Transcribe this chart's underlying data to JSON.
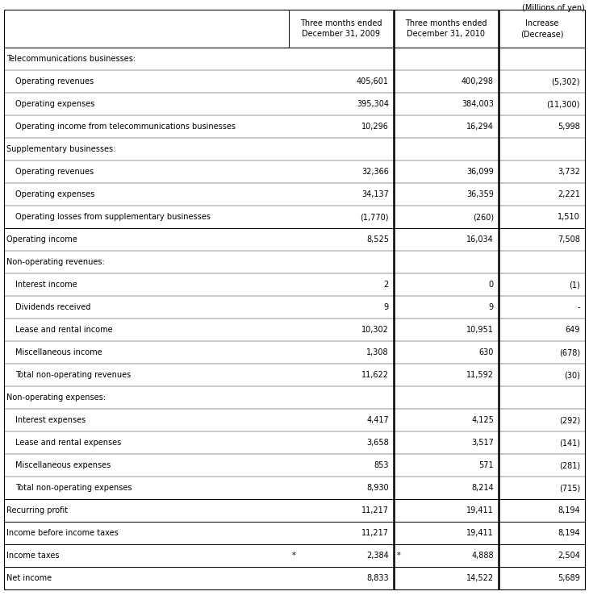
{
  "title_note": "(Millions of yen)",
  "col_headers": [
    "Three months ended\nDecember 31, 2009",
    "Three months ended\nDecember 31, 2010",
    "Increase\n(Decrease)"
  ],
  "rows": [
    {
      "label": "Telecommunications businesses:",
      "indent": 0,
      "header": true,
      "v1": "",
      "v2": "",
      "v3": ""
    },
    {
      "label": "Operating revenues",
      "indent": 1,
      "v1": "405,601",
      "v2": "400,298",
      "v3": "(5,302)"
    },
    {
      "label": "Operating expenses",
      "indent": 1,
      "v1": "395,304",
      "v2": "384,003",
      "v3": "(11,300)"
    },
    {
      "label": "Operating income from telecommunications businesses",
      "indent": 1,
      "v1": "10,296",
      "v2": "16,294",
      "v3": "5,998"
    },
    {
      "label": "Supplementary businesses:",
      "indent": 0,
      "header": true,
      "v1": "",
      "v2": "",
      "v3": ""
    },
    {
      "label": "Operating revenues",
      "indent": 1,
      "v1": "32,366",
      "v2": "36,099",
      "v3": "3,732"
    },
    {
      "label": "Operating expenses",
      "indent": 1,
      "v1": "34,137",
      "v2": "36,359",
      "v3": "2,221"
    },
    {
      "label": "Operating losses from supplementary businesses",
      "indent": 1,
      "v1": "(1,770)",
      "v2": "(260)",
      "v3": "1,510"
    },
    {
      "label": "Operating income",
      "indent": 0,
      "v1": "8,525",
      "v2": "16,034",
      "v3": "7,508"
    },
    {
      "label": "Non-operating revenues:",
      "indent": 0,
      "header": true,
      "v1": "",
      "v2": "",
      "v3": ""
    },
    {
      "label": "Interest income",
      "indent": 1,
      "v1": "2",
      "v2": "0",
      "v3": "(1)"
    },
    {
      "label": "Dividends received",
      "indent": 1,
      "v1": "9",
      "v2": "9",
      "v3": "-"
    },
    {
      "label": "Lease and rental income",
      "indent": 1,
      "v1": "10,302",
      "v2": "10,951",
      "v3": "649"
    },
    {
      "label": "Miscellaneous income",
      "indent": 1,
      "v1": "1,308",
      "v2": "630",
      "v3": "(678)"
    },
    {
      "label": "Total non-operating revenues",
      "indent": 1,
      "v1": "11,622",
      "v2": "11,592",
      "v3": "(30)"
    },
    {
      "label": "Non-operating expenses:",
      "indent": 0,
      "header": true,
      "v1": "",
      "v2": "",
      "v3": ""
    },
    {
      "label": "Interest expenses",
      "indent": 1,
      "v1": "4,417",
      "v2": "4,125",
      "v3": "(292)"
    },
    {
      "label": "Lease and rental expenses",
      "indent": 1,
      "v1": "3,658",
      "v2": "3,517",
      "v3": "(141)"
    },
    {
      "label": "Miscellaneous expenses",
      "indent": 1,
      "v1": "853",
      "v2": "571",
      "v3": "(281)"
    },
    {
      "label": "Total non-operating expenses",
      "indent": 1,
      "v1": "8,930",
      "v2": "8,214",
      "v3": "(715)"
    },
    {
      "label": "Recurring profit",
      "indent": 0,
      "v1": "11,217",
      "v2": "19,411",
      "v3": "8,194"
    },
    {
      "label": "Income before income taxes",
      "indent": 0,
      "v1": "11,217",
      "v2": "19,411",
      "v3": "8,194"
    },
    {
      "label": "Income taxes",
      "indent": 0,
      "v1": "2,384",
      "v2": "4,888",
      "v3": "2,504",
      "star1": true,
      "star2": true
    },
    {
      "label": "Net income",
      "indent": 0,
      "v1": "8,833",
      "v2": "14,522",
      "v3": "5,689"
    }
  ],
  "bg_color": "#ffffff",
  "line_color": "#000000",
  "font_size": 7.0,
  "font_family": "DejaVu Sans"
}
